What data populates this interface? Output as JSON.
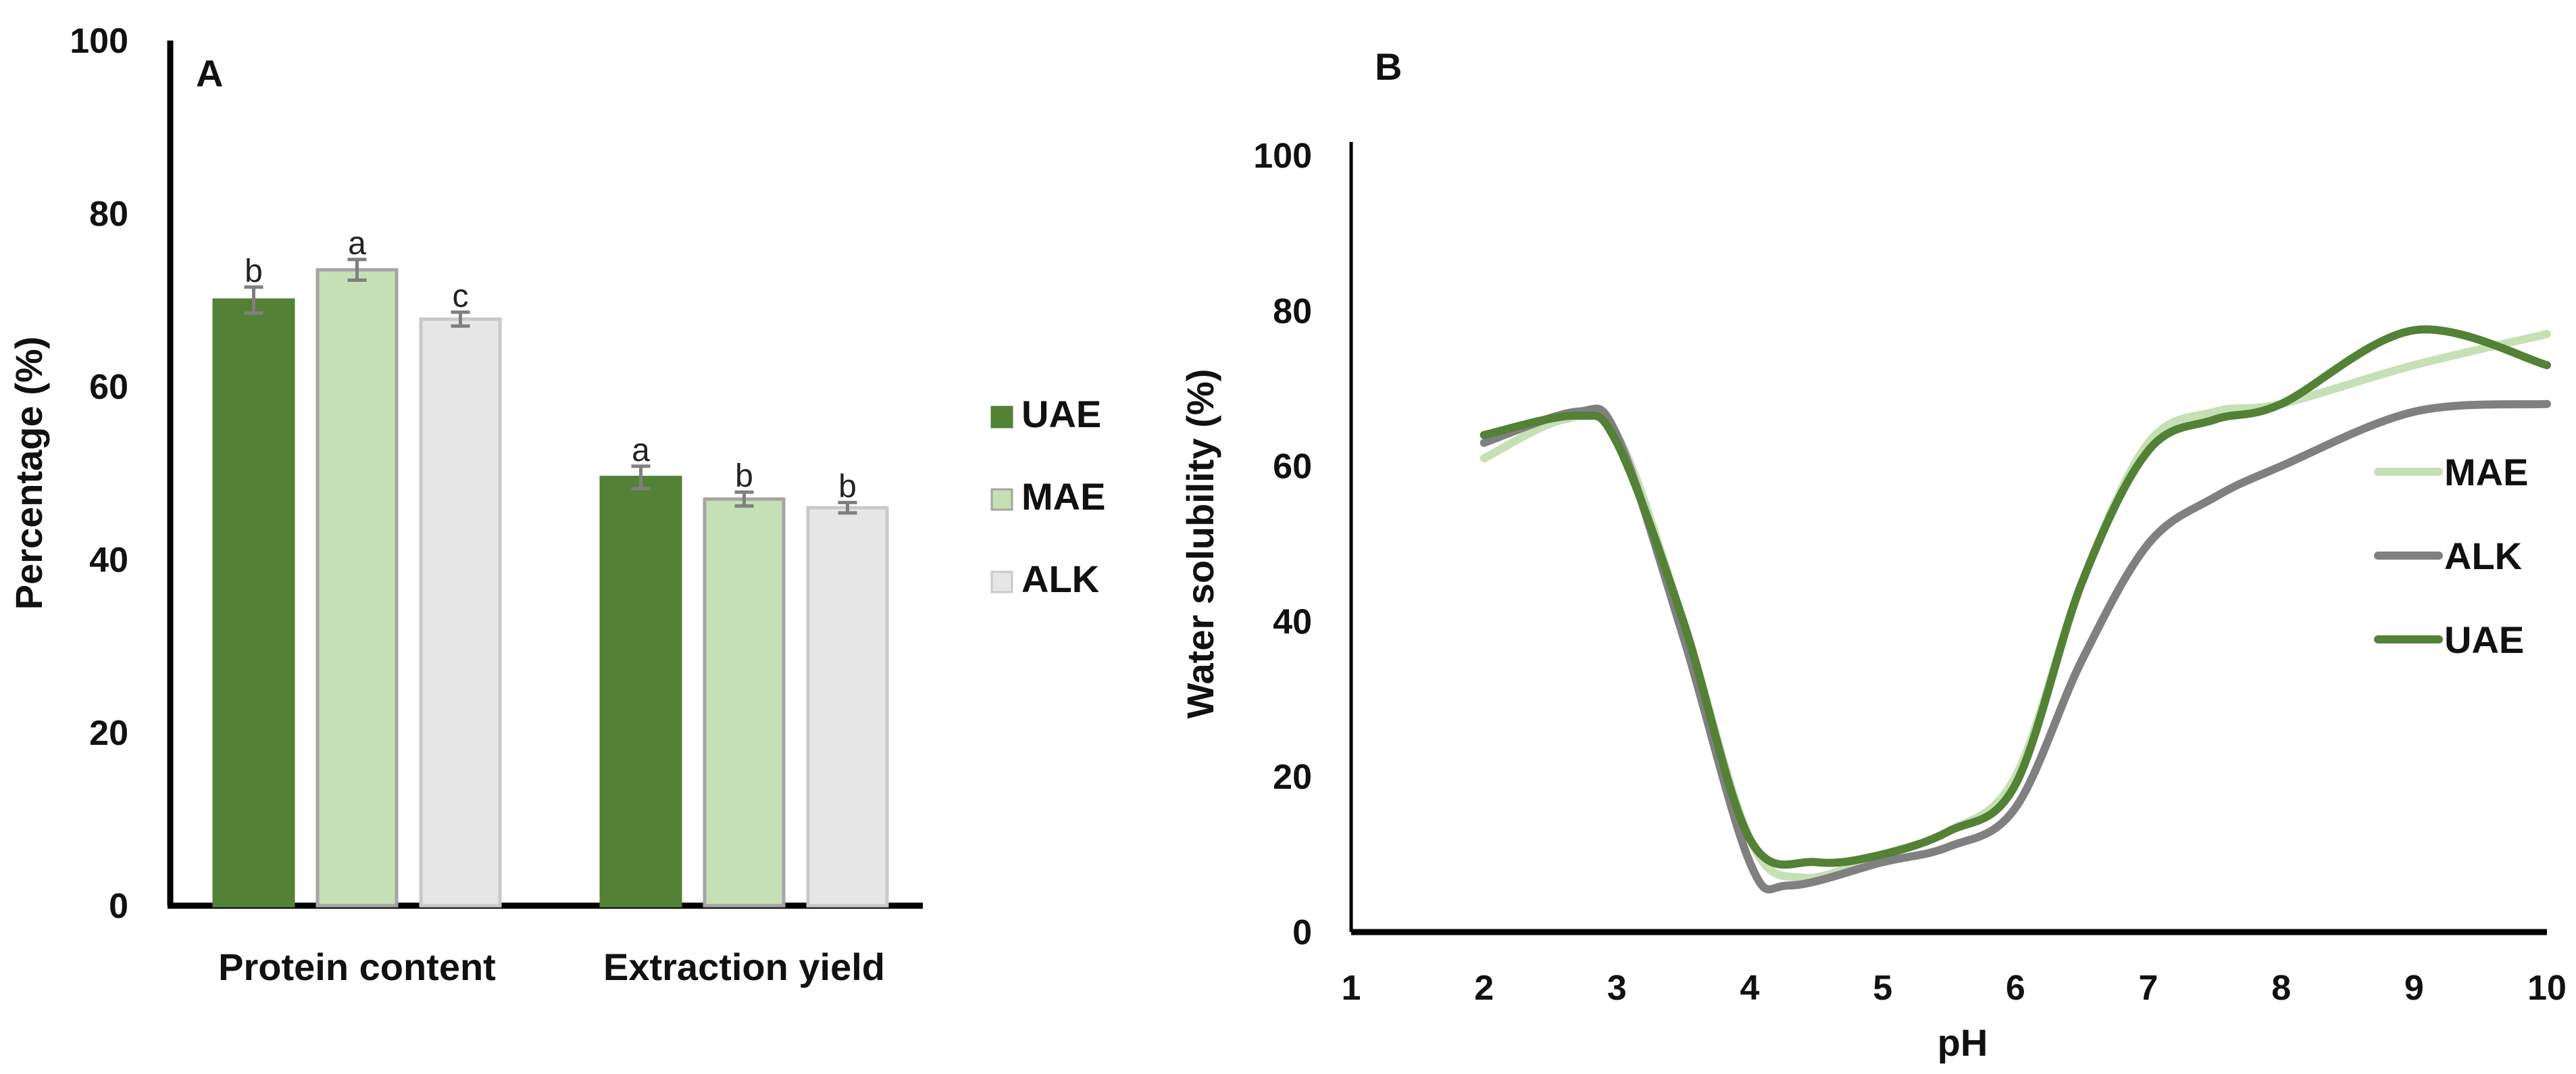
{
  "chart_data": [
    {
      "type": "bar",
      "panel_label": "A",
      "title": "",
      "xlabel": "",
      "ylabel": "Percentage (%)",
      "ylim": [
        0,
        100
      ],
      "yticks": [
        "0",
        "20",
        "40",
        "60",
        "80",
        "100"
      ],
      "categories": [
        "Protein content",
        "Extraction yield"
      ],
      "legend_position": "right",
      "series": [
        {
          "name": "UAE",
          "color": "#538135",
          "border": "#538135",
          "values": [
            70.0,
            49.5
          ],
          "errors": [
            1.5,
            1.3
          ],
          "letters": [
            "b",
            "a"
          ]
        },
        {
          "name": "MAE",
          "color": "#c5e0b4",
          "border": "#a5a5a5",
          "values": [
            73.5,
            47.0
          ],
          "errors": [
            1.2,
            0.8
          ],
          "letters": [
            "a",
            "b"
          ]
        },
        {
          "name": "ALK",
          "color": "#e7e6e6",
          "border": "#c9c9c9",
          "values": [
            67.8,
            46.0
          ],
          "errors": [
            0.8,
            0.6
          ],
          "letters": [
            "c",
            "b"
          ]
        }
      ]
    },
    {
      "type": "line",
      "panel_label": "B",
      "title": "",
      "xlabel": "pH",
      "ylabel": "Water solubility (%)",
      "xlim": [
        1,
        10
      ],
      "ylim": [
        0,
        100
      ],
      "xticks": [
        "1",
        "2",
        "3",
        "4",
        "5",
        "6",
        "7",
        "8",
        "9",
        "10"
      ],
      "yticks": [
        "0",
        "20",
        "40",
        "60",
        "80",
        "100"
      ],
      "legend_position": "right",
      "series": [
        {
          "name": "MAE",
          "color": "#c5e0b4",
          "x": [
            2,
            2.6,
            3,
            3.5,
            4,
            4.4,
            5,
            5.5,
            6,
            6.5,
            7,
            7.5,
            8,
            9,
            10
          ],
          "y": [
            61,
            66,
            64,
            40,
            12,
            7,
            10,
            13,
            20,
            45,
            63,
            67,
            68,
            73,
            77
          ]
        },
        {
          "name": "ALK",
          "color": "#808080",
          "x": [
            2,
            2.7,
            3,
            3.5,
            4,
            4.3,
            5,
            5.5,
            6,
            6.5,
            7,
            7.5,
            8,
            9,
            10
          ],
          "y": [
            63,
            67,
            64,
            38,
            9,
            6,
            9,
            11,
            16,
            35,
            50,
            56,
            60,
            67,
            68
          ]
        },
        {
          "name": "UAE",
          "color": "#538135",
          "x": [
            2,
            2.7,
            3,
            3.5,
            4,
            4.5,
            5,
            5.5,
            6,
            6.5,
            7,
            7.5,
            8,
            9,
            10
          ],
          "y": [
            64,
            66.5,
            63,
            40,
            12,
            9,
            10,
            13,
            19,
            45,
            62,
            66,
            68,
            77.5,
            73
          ]
        }
      ]
    }
  ]
}
